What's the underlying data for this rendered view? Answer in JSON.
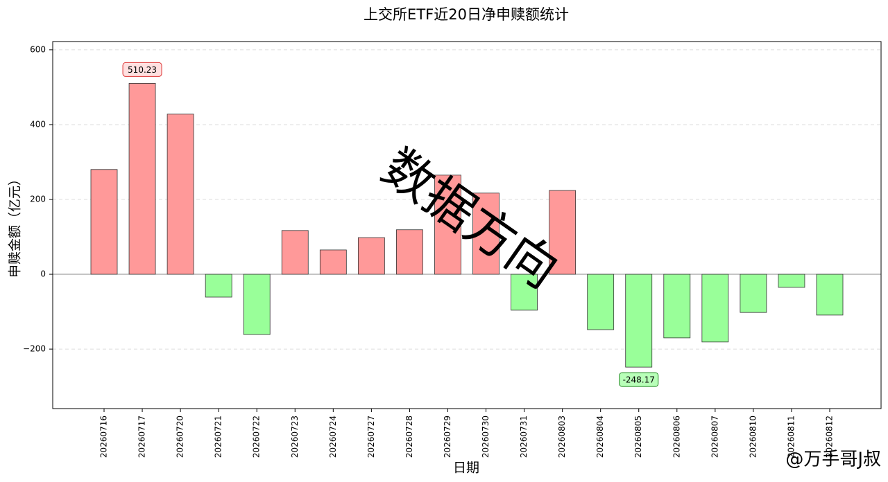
{
  "chart_data": {
    "type": "bar",
    "title": "上交所ETF近20日净申赎额统计",
    "x_label": "日期",
    "y_label": "申赎金额（亿元）",
    "categories": [
      "20260716",
      "20260717",
      "20260720",
      "20260721",
      "20260722",
      "20260723",
      "20260724",
      "20260727",
      "20260728",
      "20260729",
      "20260730",
      "20260731",
      "20260803",
      "20260804",
      "20260805",
      "20260806",
      "20260807",
      "20260810",
      "20260811",
      "20260812"
    ],
    "values": [
      280,
      510.23,
      428,
      -61,
      -161,
      117,
      65,
      98,
      119,
      265,
      217,
      -96,
      224,
      -148,
      -248.17,
      -170,
      -181,
      -102,
      -35,
      -109
    ],
    "positive_color": "#ff9999",
    "negative_color": "#99ff99",
    "ylim": [
      -359,
      622
    ],
    "yticks": [
      {
        "value": -200,
        "label": "−200"
      },
      0,
      200,
      400,
      600
    ],
    "grid": true,
    "watermark": "数据方向",
    "credit": "@万手哥J叔"
  }
}
